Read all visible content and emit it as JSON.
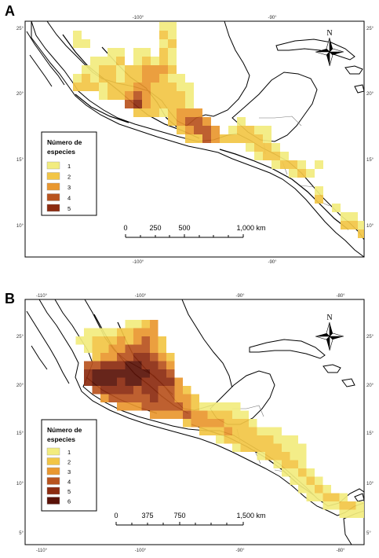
{
  "colors": {
    "c1": "#f2ec7e",
    "c2": "#f2c545",
    "c3": "#e9972f",
    "c4": "#b8531e",
    "c5": "#8c2b10",
    "c6": "#5a1208",
    "land": "#ffffff",
    "border": "#000000"
  },
  "panels": [
    {
      "letter": "A",
      "north_label": "N",
      "top_ticks": [
        "-100°",
        "-90°"
      ],
      "bottom_ticks": [
        "-100°",
        "-90°"
      ],
      "left_ticks": [
        "25°",
        "20°",
        "15°",
        "10°"
      ],
      "right_ticks": [
        "25°",
        "20°",
        "15°",
        "10°"
      ],
      "legend": {
        "title_line1": "Número de",
        "title_line2": "especies",
        "items": [
          {
            "label": "1",
            "level": 1
          },
          {
            "label": "2",
            "level": 2
          },
          {
            "label": "3",
            "level": 3
          },
          {
            "label": "4",
            "level": 4
          },
          {
            "label": "5",
            "level": 5
          }
        ]
      },
      "scale": {
        "labels": [
          "0",
          "250",
          "500",
          "1,000 km"
        ]
      }
    },
    {
      "letter": "B",
      "north_label": "N",
      "top_ticks": [
        "-110°",
        "-100°",
        "-90°",
        "-80°"
      ],
      "bottom_ticks": [
        "-110°",
        "-100°",
        "-90°",
        "-80°"
      ],
      "left_ticks": [
        "25°",
        "20°",
        "15°",
        "10°",
        "5°"
      ],
      "right_ticks": [
        "25°",
        "20°",
        "15°",
        "10°",
        "5°"
      ],
      "legend": {
        "title_line1": "Número de",
        "title_line2": "especies",
        "items": [
          {
            "label": "1",
            "level": 1
          },
          {
            "label": "2",
            "level": 2
          },
          {
            "label": "3",
            "level": 3
          },
          {
            "label": "4",
            "level": 4
          },
          {
            "label": "5",
            "level": 5
          },
          {
            "label": "6",
            "level": 6
          }
        ]
      },
      "scale": {
        "labels": [
          "0",
          "375",
          "750",
          "1,500 km"
        ]
      }
    }
  ]
}
